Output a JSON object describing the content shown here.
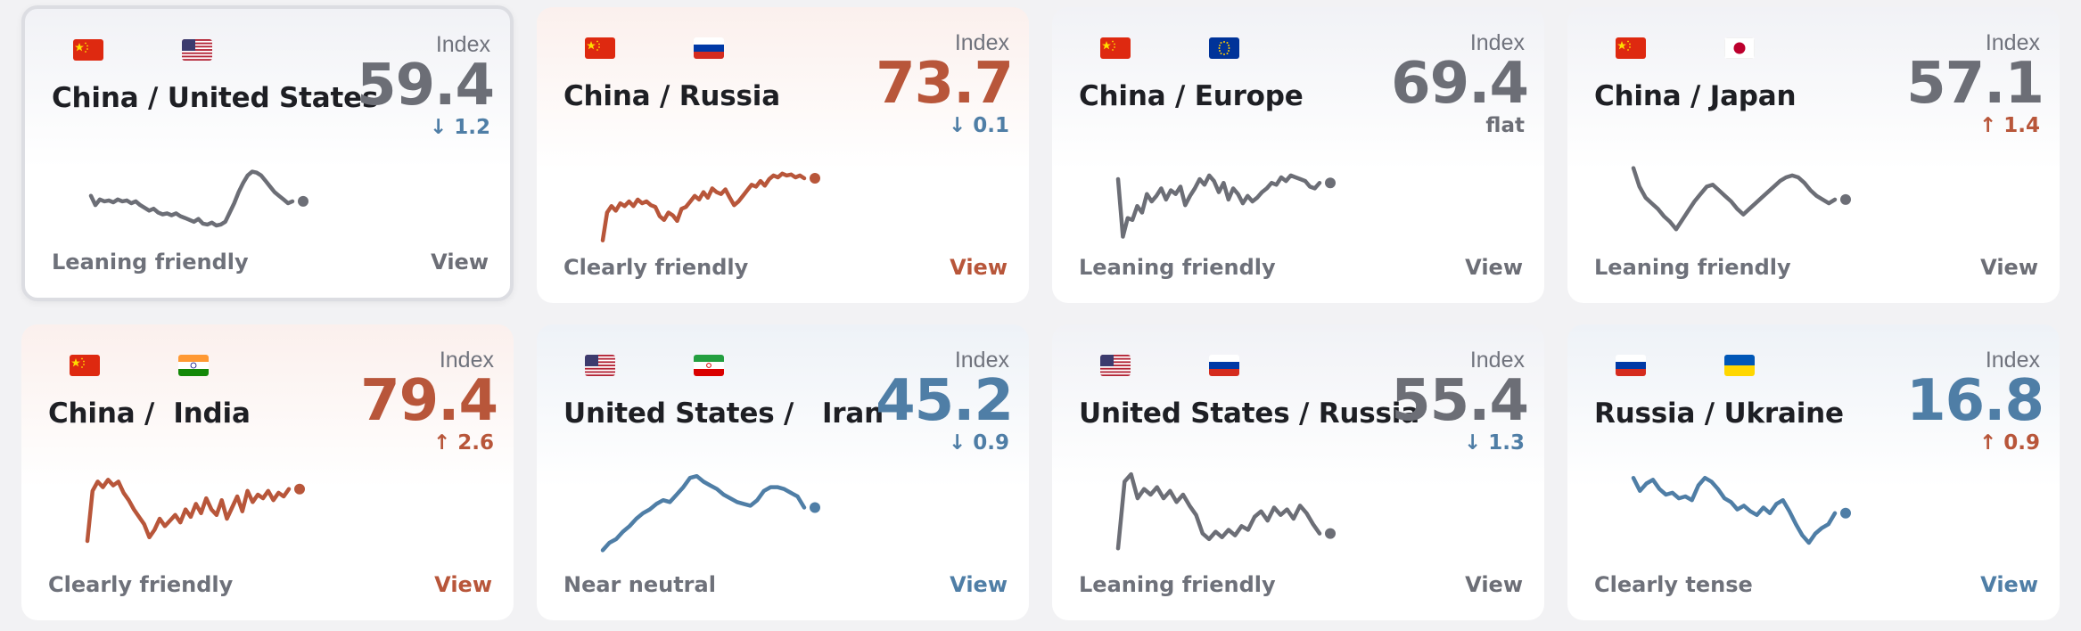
{
  "colors": {
    "neutral": "#6c6e76",
    "friendly": "#b8563a",
    "tense": "#4f7ea6"
  },
  "index_label": "Index",
  "view_label": "View",
  "cards": [
    {
      "title": "China / United States",
      "flags": [
        "china-flag-icon",
        "us-flag-icon"
      ],
      "index": "59.4",
      "delta": "↓ 1.2",
      "delta_tone": "tense",
      "tone": "neutral",
      "status": "Leaning friendly",
      "highlighted": true,
      "series": [
        0.42,
        0.52,
        0.46,
        0.48,
        0.47,
        0.49,
        0.46,
        0.48,
        0.47,
        0.5,
        0.48,
        0.52,
        0.55,
        0.58,
        0.56,
        0.6,
        0.62,
        0.61,
        0.63,
        0.61,
        0.64,
        0.66,
        0.68,
        0.7,
        0.67,
        0.72,
        0.73,
        0.71,
        0.74,
        0.73,
        0.7,
        0.6,
        0.5,
        0.38,
        0.28,
        0.2,
        0.16,
        0.17,
        0.2,
        0.26,
        0.32,
        0.38,
        0.42,
        0.46,
        0.5,
        0.48
      ]
    },
    {
      "title": "China / Russia",
      "flags": [
        "china-flag-icon",
        "russia-flag-icon"
      ],
      "index": "73.7",
      "delta": "↓ 0.1",
      "delta_tone": "tense",
      "tone": "friendly",
      "status": "Clearly friendly",
      "highlighted": false,
      "series": [
        0.92,
        0.62,
        0.55,
        0.6,
        0.52,
        0.55,
        0.5,
        0.55,
        0.48,
        0.52,
        0.5,
        0.54,
        0.56,
        0.66,
        0.7,
        0.62,
        0.65,
        0.71,
        0.58,
        0.56,
        0.5,
        0.44,
        0.48,
        0.4,
        0.46,
        0.36,
        0.4,
        0.42,
        0.37,
        0.46,
        0.54,
        0.5,
        0.44,
        0.38,
        0.32,
        0.34,
        0.28,
        0.33,
        0.26,
        0.22,
        0.24,
        0.2,
        0.22,
        0.21,
        0.24,
        0.22,
        0.25
      ]
    },
    {
      "title": "China / Europe",
      "flags": [
        "china-flag-icon",
        "eu-flag-icon"
      ],
      "index": "69.4",
      "delta": "flat",
      "delta_tone": "neutral",
      "tone": "neutral",
      "status": "Leaning friendly",
      "highlighted": false,
      "series": [
        0.26,
        0.88,
        0.68,
        0.7,
        0.55,
        0.62,
        0.42,
        0.5,
        0.44,
        0.36,
        0.48,
        0.38,
        0.42,
        0.34,
        0.54,
        0.44,
        0.36,
        0.26,
        0.32,
        0.22,
        0.28,
        0.4,
        0.3,
        0.48,
        0.36,
        0.42,
        0.52,
        0.44,
        0.5,
        0.46,
        0.4,
        0.36,
        0.3,
        0.32,
        0.24,
        0.28,
        0.22,
        0.24,
        0.26,
        0.28,
        0.34,
        0.36,
        0.3
      ]
    },
    {
      "title": "China / Japan",
      "flags": [
        "china-flag-icon",
        "japan-flag-icon"
      ],
      "index": "57.1",
      "delta": "↑ 1.4",
      "delta_tone": "friendly",
      "tone": "neutral",
      "status": "Leaning friendly",
      "highlighted": false,
      "series": [
        0.14,
        0.34,
        0.46,
        0.52,
        0.58,
        0.66,
        0.72,
        0.8,
        0.7,
        0.6,
        0.5,
        0.42,
        0.34,
        0.32,
        0.38,
        0.44,
        0.5,
        0.58,
        0.64,
        0.58,
        0.52,
        0.46,
        0.4,
        0.34,
        0.28,
        0.24,
        0.22,
        0.24,
        0.3,
        0.38,
        0.44,
        0.48,
        0.52,
        0.48
      ]
    },
    {
      "title": "China /  India",
      "flags": [
        "china-flag-icon",
        "india-flag-icon"
      ],
      "index": "79.4",
      "delta": "↑ 2.6",
      "delta_tone": "friendly",
      "tone": "friendly",
      "status": "Clearly friendly",
      "highlighted": false,
      "series": [
        0.74,
        0.2,
        0.1,
        0.16,
        0.08,
        0.14,
        0.1,
        0.22,
        0.3,
        0.4,
        0.48,
        0.56,
        0.7,
        0.62,
        0.5,
        0.58,
        0.52,
        0.46,
        0.54,
        0.4,
        0.48,
        0.34,
        0.44,
        0.28,
        0.4,
        0.46,
        0.3,
        0.5,
        0.38,
        0.26,
        0.42,
        0.2,
        0.32,
        0.24,
        0.28,
        0.2,
        0.3,
        0.22,
        0.26,
        0.18
      ]
    },
    {
      "title": "United States /   Iran",
      "flags": [
        "us-flag-icon",
        "iran-flag-icon"
      ],
      "index": "45.2",
      "delta": "↓ 0.9",
      "delta_tone": "tense",
      "tone": "blue",
      "status": "Near neutral",
      "highlighted": false,
      "series": [
        0.84,
        0.76,
        0.72,
        0.64,
        0.58,
        0.5,
        0.44,
        0.4,
        0.34,
        0.3,
        0.32,
        0.24,
        0.16,
        0.06,
        0.04,
        0.1,
        0.14,
        0.18,
        0.24,
        0.28,
        0.32,
        0.34,
        0.36,
        0.3,
        0.2,
        0.16,
        0.16,
        0.18,
        0.22,
        0.26,
        0.38
      ]
    },
    {
      "title": "United States / Russia",
      "flags": [
        "us-flag-icon",
        "russia-flag-icon"
      ],
      "index": "55.4",
      "delta": "↓ 1.3",
      "delta_tone": "tense",
      "tone": "neutral",
      "status": "Leaning friendly",
      "highlighted": false,
      "series": [
        0.82,
        0.1,
        0.02,
        0.28,
        0.18,
        0.24,
        0.16,
        0.28,
        0.2,
        0.32,
        0.24,
        0.36,
        0.46,
        0.66,
        0.72,
        0.64,
        0.7,
        0.62,
        0.68,
        0.58,
        0.62,
        0.48,
        0.42,
        0.52,
        0.38,
        0.46,
        0.4,
        0.5,
        0.36,
        0.44,
        0.56,
        0.66
      ]
    },
    {
      "title": "Russia / Ukraine",
      "flags": [
        "russia-flag-icon",
        "ukraine-flag-icon"
      ],
      "index": "16.8",
      "delta": "↑ 0.9",
      "delta_tone": "friendly",
      "tone": "blue",
      "status": "Clearly tense",
      "highlighted": false,
      "series": [
        0.06,
        0.2,
        0.12,
        0.08,
        0.18,
        0.24,
        0.22,
        0.28,
        0.26,
        0.3,
        0.14,
        0.06,
        0.1,
        0.18,
        0.28,
        0.32,
        0.4,
        0.36,
        0.42,
        0.46,
        0.38,
        0.44,
        0.34,
        0.3,
        0.42,
        0.56,
        0.68,
        0.76,
        0.66,
        0.6,
        0.56,
        0.44
      ]
    }
  ]
}
